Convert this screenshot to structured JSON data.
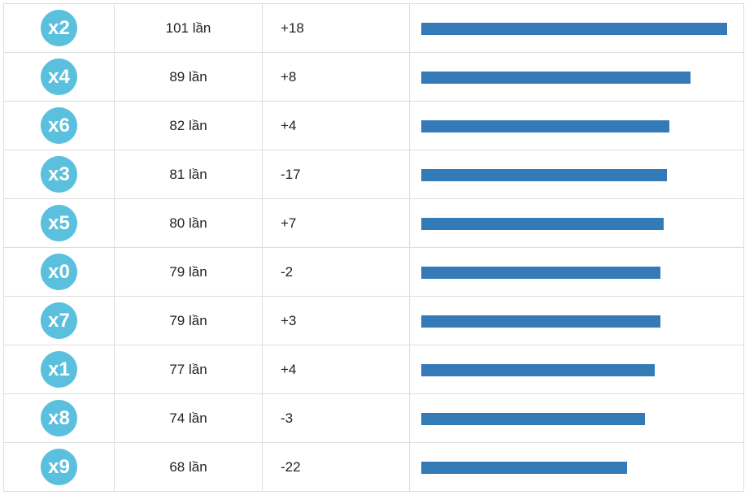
{
  "colors": {
    "badge": "#5bc0de",
    "bar": "#337ab7",
    "border": "#dedede"
  },
  "rows": [
    {
      "label": "x2",
      "count": "101 lần",
      "delta": "+18",
      "frequency": 101
    },
    {
      "label": "x4",
      "count": "89 lần",
      "delta": "+8",
      "frequency": 89
    },
    {
      "label": "x6",
      "count": "82 lần",
      "delta": "+4",
      "frequency": 82
    },
    {
      "label": "x3",
      "count": "81 lần",
      "delta": "-17",
      "frequency": 81
    },
    {
      "label": "x5",
      "count": "80 lần",
      "delta": "+7",
      "frequency": 80
    },
    {
      "label": "x0",
      "count": "79 lần",
      "delta": "-2",
      "frequency": 79
    },
    {
      "label": "x7",
      "count": "79 lần",
      "delta": "+3",
      "frequency": 79
    },
    {
      "label": "x1",
      "count": "77 lần",
      "delta": "+4",
      "frequency": 77
    },
    {
      "label": "x8",
      "count": "74 lần",
      "delta": "-3",
      "frequency": 74
    },
    {
      "label": "x9",
      "count": "68 lần",
      "delta": "-22",
      "frequency": 68
    }
  ]
}
